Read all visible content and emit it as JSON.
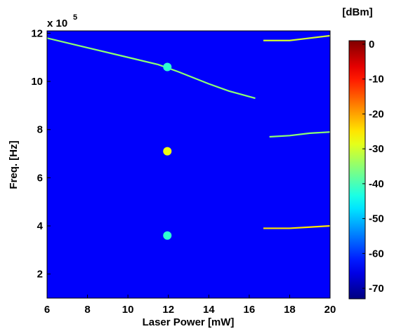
{
  "chart_data": {
    "type": "heatmap",
    "xlabel": "Laser Power [mW]",
    "ylabel": "Freq. [Hz]",
    "y_offset_label": "x 10",
    "y_offset_exponent": "5",
    "colorbar_label": "[dBm]",
    "xlim": [
      6,
      20
    ],
    "ylim": [
      1,
      12.1
    ],
    "xticks": [
      6,
      8,
      10,
      12,
      14,
      16,
      18,
      20
    ],
    "yticks": [
      2,
      4,
      6,
      8,
      10,
      12
    ],
    "clim": [
      -73,
      1
    ],
    "cticks": [
      0,
      -10,
      -20,
      -30,
      -40,
      -50,
      -60,
      -70
    ],
    "colormap": "jet",
    "background": -64,
    "traces": [
      {
        "x": [
          6,
          8,
          10,
          11.5,
          12.5,
          14,
          15,
          16.3
        ],
        "y": [
          11.8,
          11.4,
          11.0,
          10.7,
          10.4,
          9.9,
          9.6,
          9.3
        ],
        "level": -35
      },
      {
        "x": [
          16.7,
          18,
          19,
          20
        ],
        "y": [
          11.7,
          11.7,
          11.8,
          11.9
        ],
        "level": -30
      },
      {
        "x": [
          16.7,
          18,
          19,
          20
        ],
        "y": [
          3.9,
          3.9,
          3.95,
          4.0
        ],
        "level": -25
      },
      {
        "x": [
          17,
          18,
          19,
          20
        ],
        "y": [
          7.7,
          7.75,
          7.85,
          7.9
        ],
        "level": -35
      }
    ],
    "spots": [
      {
        "x": 11.95,
        "y": 10.6,
        "level": -42
      },
      {
        "x": 11.95,
        "y": 7.1,
        "level": -28
      },
      {
        "x": 11.95,
        "y": 3.6,
        "level": -42
      }
    ]
  }
}
